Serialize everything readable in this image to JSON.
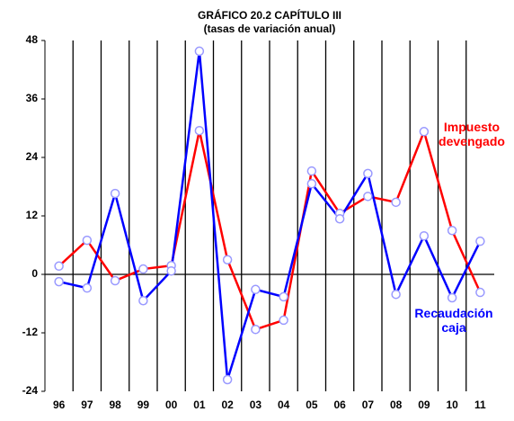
{
  "chart_data": {
    "type": "line",
    "title": "GRÁFICO 20.2 CAPÍTULO III",
    "subtitle": "(tasas de variación anual)",
    "categories": [
      "96",
      "97",
      "98",
      "99",
      "00",
      "01",
      "02",
      "03",
      "04",
      "05",
      "06",
      "07",
      "08",
      "09",
      "10",
      "11"
    ],
    "series": [
      {
        "name": "Impuesto devengado",
        "color": "#ff0000",
        "values": [
          1.7,
          7,
          -1.3,
          1.1,
          1.8,
          29.5,
          3,
          -11.3,
          -9.4,
          21.2,
          12.5,
          16,
          14.8,
          29.3,
          9,
          -3.7
        ]
      },
      {
        "name": "Recaudación caja",
        "color": "#0000ff",
        "values": [
          -1.5,
          -2.8,
          16.6,
          -5.4,
          0.7,
          45.8,
          -21.6,
          -3.1,
          -4.6,
          18.6,
          11.4,
          20.7,
          -4.1,
          7.9,
          -4.8,
          6.8
        ]
      }
    ],
    "ylim": [
      -24,
      48
    ],
    "yticks": [
      -24,
      -12,
      0,
      12,
      24,
      36,
      48
    ],
    "marker_color": "#9999ff"
  }
}
